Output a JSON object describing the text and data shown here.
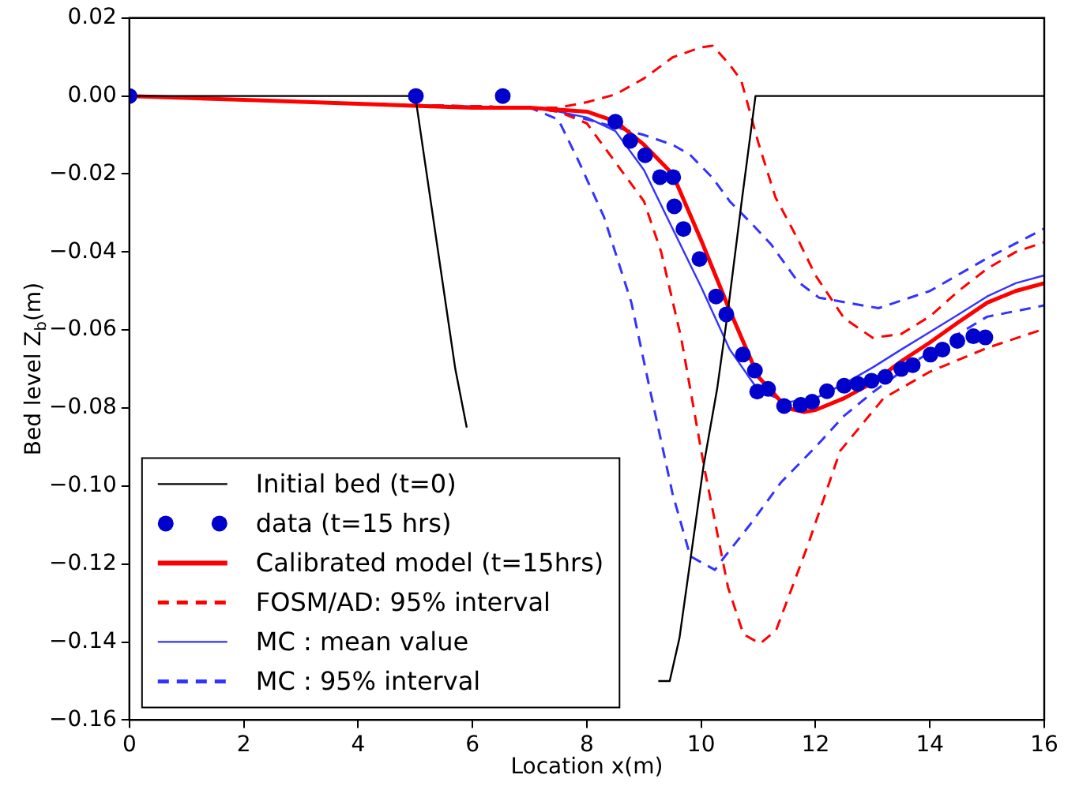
{
  "chart_data": {
    "type": "line",
    "xlabel": "Location x(m)",
    "ylabel": "Bed level Z$_{b}$(m)",
    "xlim": [
      0,
      16
    ],
    "xticks": [
      0,
      2,
      4,
      6,
      8,
      10,
      12,
      14,
      16
    ],
    "ylim": [
      -0.16,
      0.02
    ],
    "yticks": [
      {
        "value": -0.16,
        "label": "−0.16"
      },
      {
        "value": -0.14,
        "label": "−0.14"
      },
      {
        "value": -0.12,
        "label": "−0.12"
      },
      {
        "value": -0.1,
        "label": "−0.10"
      },
      {
        "value": -0.08,
        "label": "−0.08"
      },
      {
        "value": -0.06,
        "label": "−0.06"
      },
      {
        "value": -0.04,
        "label": "−0.04"
      },
      {
        "value": -0.02,
        "label": "−0.02"
      },
      {
        "value": 0,
        "label": "0.00"
      },
      {
        "value": 0.02,
        "label": "0.02"
      }
    ],
    "grid": false,
    "legend": "bottom left",
    "series": [
      {
        "name": "Initial bed (t=0)",
        "type": "line",
        "color": "#000000",
        "line_style": "solid",
        "marker": "none",
        "x": [
          0,
          5,
          5.1,
          5.3,
          5.5,
          5.7,
          5.9,
          7.5,
          9.25,
          9.45,
          9.62,
          10.04,
          10.28,
          10.46,
          10.7,
          10.95,
          16
        ],
        "values": [
          0,
          0,
          -0.01,
          -0.03,
          -0.05,
          -0.07,
          -0.085,
          null,
          -0.15,
          -0.15,
          -0.139,
          -0.095,
          -0.075,
          -0.056,
          -0.028,
          0,
          0
        ]
      },
      {
        "name": "data (t=15 hrs)",
        "type": "scatter",
        "color": "#0000cc",
        "marker": "circle",
        "x": [
          0,
          5.01,
          6.53,
          8.5,
          8.76,
          9.02,
          9.28,
          9.51,
          9.53,
          9.69,
          9.97,
          10.26,
          10.44,
          10.73,
          10.94,
          10.98,
          11.17,
          11.45,
          11.74,
          11.94,
          12.2,
          12.5,
          12.74,
          12.98,
          13.22,
          13.5,
          13.7,
          14.01,
          14.22,
          14.48,
          14.76,
          14.97
        ],
        "values": [
          0,
          0,
          0,
          -0.0066,
          -0.0115,
          -0.0152,
          -0.0208,
          -0.0208,
          -0.0283,
          -0.0341,
          -0.0418,
          -0.0514,
          -0.056,
          -0.0663,
          -0.0704,
          -0.0758,
          -0.0751,
          -0.0795,
          -0.0792,
          -0.0784,
          -0.0757,
          -0.0743,
          -0.0738,
          -0.073,
          -0.072,
          -0.07,
          -0.069,
          -0.0663,
          -0.065,
          -0.0628,
          -0.0616,
          -0.0619
        ]
      },
      {
        "name": "Calibrated model (t=15hrs)",
        "type": "line",
        "color": "#ff0000",
        "line_style": "solid",
        "marker": "none",
        "x": [
          0,
          2,
          4,
          6,
          7,
          7.5,
          8,
          8.5,
          9,
          9.5,
          10,
          10.5,
          11,
          11.5,
          11.8,
          12,
          12.5,
          13,
          13.5,
          14,
          14.5,
          15,
          15.5,
          16
        ],
        "values": [
          0,
          -0.001,
          -0.002,
          -0.003,
          -0.003,
          -0.0035,
          -0.004,
          -0.0065,
          -0.0125,
          -0.02,
          -0.037,
          -0.055,
          -0.072,
          -0.08,
          -0.081,
          -0.0805,
          -0.0775,
          -0.0735,
          -0.068,
          -0.0632,
          -0.058,
          -0.053,
          -0.05,
          -0.048
        ]
      },
      {
        "name": "FOSM/AD: 95% interval",
        "type": "line",
        "color": "#ff0000",
        "line_style": "dashed",
        "marker": "none",
        "x": [
          0,
          4,
          7,
          7.5,
          8,
          8.5,
          9,
          9.5,
          10,
          10.2,
          10.5,
          10.7,
          11,
          11.3,
          11.7,
          12,
          12.5,
          13,
          13.5,
          14,
          14.5,
          15,
          15.5,
          16
        ],
        "values": [
          0,
          -0.002,
          -0.003,
          -0.003,
          -0.0016,
          0.0004,
          0.0045,
          0.0099,
          0.0125,
          0.0129,
          0.008,
          0.004,
          -0.012,
          -0.026,
          -0.037,
          -0.046,
          -0.057,
          -0.062,
          -0.061,
          -0.0565,
          -0.05,
          -0.0443,
          -0.04,
          -0.0375
        ]
      },
      {
        "type": "line",
        "color": "#ff0000",
        "line_style": "dashed",
        "marker": "none",
        "x": [
          0,
          4,
          7,
          7.5,
          8,
          8.5,
          9,
          9.3,
          9.65,
          10.05,
          10.47,
          10.74,
          11.03,
          11.31,
          11.87,
          12.43,
          13.19,
          14,
          15,
          16
        ],
        "values": [
          0,
          -0.002,
          -0.003,
          -0.004,
          -0.007,
          -0.017,
          -0.027,
          -0.04,
          -0.062,
          -0.095,
          -0.126,
          -0.138,
          -0.1404,
          -0.137,
          -0.115,
          -0.091,
          -0.0775,
          -0.0707,
          -0.0646,
          -0.0597
        ]
      },
      {
        "name": "MC : mean value",
        "type": "line",
        "color": "#3333ff",
        "line_style": "solid",
        "marker": "none",
        "x": [
          0,
          4,
          7,
          7.5,
          8,
          8.5,
          9,
          9.5,
          10,
          10.5,
          11,
          11.5,
          12,
          12.5,
          13,
          13.5,
          14,
          14.5,
          15,
          15.5,
          16
        ],
        "values": [
          0,
          -0.002,
          -0.003,
          -0.004,
          -0.0055,
          -0.009,
          -0.019,
          -0.034,
          -0.049,
          -0.065,
          -0.0755,
          -0.0785,
          -0.0775,
          -0.0738,
          -0.0696,
          -0.065,
          -0.0605,
          -0.056,
          -0.0514,
          -0.048,
          -0.046
        ]
      },
      {
        "name": "MC : 95% interval",
        "type": "line",
        "color": "#3333ff",
        "line_style": "dashed",
        "marker": "none",
        "x": [
          0,
          4,
          7,
          7.5,
          8,
          8.5,
          9,
          9.5,
          9.8,
          10.2,
          10.5,
          10.9,
          11.22,
          11.69,
          12.06,
          13.1,
          14,
          15,
          16
        ],
        "values": [
          0,
          -0.002,
          -0.003,
          -0.004,
          -0.006,
          -0.008,
          -0.01,
          -0.0125,
          -0.015,
          -0.021,
          -0.027,
          -0.033,
          -0.038,
          -0.0476,
          -0.0517,
          -0.0544,
          -0.05,
          -0.0416,
          -0.034
        ]
      },
      {
        "type": "line",
        "color": "#3333ff",
        "line_style": "dashed",
        "marker": "none",
        "x": [
          0,
          4,
          7,
          7.5,
          7.85,
          8.3,
          8.78,
          9.1,
          9.5,
          9.81,
          10.24,
          10.38,
          10.85,
          11.4,
          12,
          12.5,
          13,
          13.75,
          14.5,
          15,
          16
        ],
        "values": [
          0,
          -0.002,
          -0.003,
          -0.006,
          -0.0165,
          -0.031,
          -0.053,
          -0.075,
          -0.102,
          -0.118,
          -0.1215,
          -0.1187,
          -0.11,
          -0.099,
          -0.09,
          -0.082,
          -0.076,
          -0.068,
          -0.061,
          -0.0566,
          -0.0537
        ]
      }
    ]
  }
}
